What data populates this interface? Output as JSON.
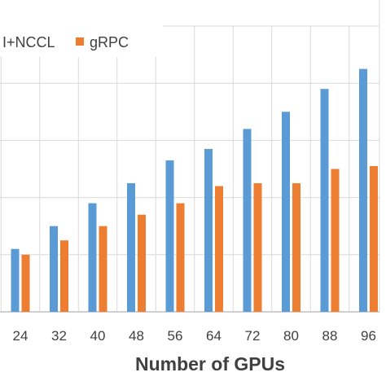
{
  "chart_data": {
    "type": "bar",
    "xlabel": "Number of GPUs",
    "categories": [
      "24",
      "32",
      "40",
      "48",
      "56",
      "64",
      "72",
      "80",
      "88",
      "96"
    ],
    "series": [
      {
        "name": "I+NCCL",
        "color": "#5B9BD5",
        "values": [
          11,
          15,
          19,
          22.5,
          26.5,
          28.5,
          32,
          35,
          39,
          42.5
        ]
      },
      {
        "name": "gRPC",
        "color": "#ED7D31",
        "values": [
          10,
          12.5,
          15,
          17,
          19,
          22,
          22.5,
          22.5,
          25,
          25.5
        ]
      }
    ],
    "ylim": [
      0,
      50
    ],
    "grid": true,
    "legend": "top-left"
  }
}
